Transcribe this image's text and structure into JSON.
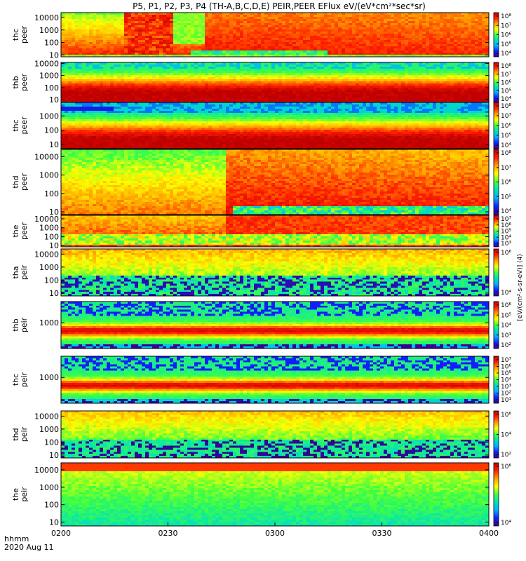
{
  "title": "P5, P1, P2, P3, P4 (TH-A,B,C,D,E) PEIR,PEER EFlux eV/(eV*cm²*sec*sr)",
  "footer": {
    "format_label": "hhmm",
    "date_label": "2020 Aug 11"
  },
  "colorbar_unit_label": "[eV/(cm²-s-sr-eV)] (4)",
  "colors": {
    "colormap": [
      "#3a0080",
      "#1020ff",
      "#00b0ff",
      "#00e0c0",
      "#40ff40",
      "#ffff00",
      "#ffa000",
      "#ff2000",
      "#c00000"
    ]
  },
  "chart_data": {
    "type": "heatmap",
    "x_axis": {
      "range": [
        "0200",
        "0400"
      ],
      "tick_labels": [
        "0200",
        "0230",
        "0300",
        "0330",
        "0400"
      ],
      "ticks_minutes": [
        0,
        30,
        60,
        90,
        120
      ]
    },
    "panels": [
      {
        "probe": "thc",
        "species": "peer",
        "label_top": "thc",
        "label_bottom": "peer",
        "y_ticks": [
          "10",
          "100",
          "1000",
          "10000"
        ],
        "y_log_range": [
          7,
          25000
        ],
        "cbar_ticks": [
          "10⁴",
          "10⁵",
          "10⁶",
          "10⁷",
          "10⁸"
        ],
        "pattern": "peer_storm_c"
      },
      {
        "probe": "thb",
        "species": "peer",
        "label_top": "thb",
        "label_bottom": "peer",
        "y_ticks": [
          "10",
          "100",
          "1000",
          "10000"
        ],
        "y_log_range": [
          6,
          12000
        ],
        "cbar_ticks": [
          "10⁴",
          "10⁵",
          "10⁶",
          "10⁷",
          "10⁸"
        ],
        "pattern": "peer_quiet_b"
      },
      {
        "probe": "thc",
        "species": "peer",
        "label_top": "thc",
        "label_bottom": "peer",
        "y_ticks": [
          "10",
          "100",
          "1000"
        ],
        "y_log_range": [
          5,
          9000
        ],
        "cbar_ticks": [
          "10⁴",
          "10⁵",
          "10⁶",
          "10⁷",
          "10⁸"
        ],
        "pattern": "peer_quiet_c"
      },
      {
        "probe": "thd",
        "species": "peer",
        "label_top": "thd",
        "label_bottom": "peer",
        "y_ticks": [
          "10",
          "100",
          "1000",
          "10000"
        ],
        "y_log_range": [
          7,
          25000
        ],
        "cbar_ticks": [
          "10⁴",
          "10⁵",
          "10⁶",
          "10⁷",
          "10⁸"
        ],
        "pattern": "peer_storm_d"
      },
      {
        "probe": "the",
        "species": "peer",
        "label_top": "the",
        "label_bottom": "peer",
        "y_ticks": [
          "10",
          "100",
          "1000",
          "10000"
        ],
        "y_log_range": [
          7,
          25000
        ],
        "cbar_ticks": [
          "10³",
          "10⁴",
          "10⁵",
          "10⁶",
          "10⁷"
        ],
        "pattern": "peer_storm_e"
      },
      {
        "probe": "tha",
        "species": "peir",
        "label_top": "tha",
        "label_bottom": "peir",
        "y_ticks": [
          "10",
          "100",
          "1000",
          "10000"
        ],
        "y_log_range": [
          6,
          25000
        ],
        "cbar_ticks": [
          "10⁴",
          "10⁶"
        ],
        "pattern": "peir_a"
      },
      {
        "probe": "thb",
        "species": "peir",
        "label_top": "thb",
        "label_bottom": "peir",
        "y_ticks": [
          "1000"
        ],
        "y_log_range": [
          20,
          25000
        ],
        "cbar_ticks": [
          "10²",
          "10³",
          "10⁴",
          "10⁵",
          "10⁶"
        ],
        "pattern": "peir_b"
      },
      {
        "probe": "thc",
        "species": "peir",
        "label_top": "thc",
        "label_bottom": "peir",
        "y_ticks": [
          "1000"
        ],
        "y_log_range": [
          20,
          25000
        ],
        "cbar_ticks": [
          "10¹",
          "10²",
          "10³",
          "10⁴",
          "10⁵",
          "10⁶",
          "10⁷"
        ],
        "pattern": "peir_c"
      },
      {
        "probe": "thd",
        "species": "peir",
        "label_top": "thd",
        "label_bottom": "peir",
        "y_ticks": [
          "10",
          "100",
          "1000",
          "10000"
        ],
        "y_log_range": [
          6,
          25000
        ],
        "cbar_ticks": [
          "10²",
          "10⁴",
          "10⁶"
        ],
        "pattern": "peir_d"
      },
      {
        "probe": "the",
        "species": "peir",
        "label_top": "the",
        "label_bottom": "peir",
        "y_ticks": [
          "10",
          "100",
          "1000",
          "10000"
        ],
        "y_log_range": [
          6,
          25000
        ],
        "cbar_ticks": [
          "10⁴",
          "10⁶"
        ],
        "pattern": "peir_e"
      }
    ]
  }
}
